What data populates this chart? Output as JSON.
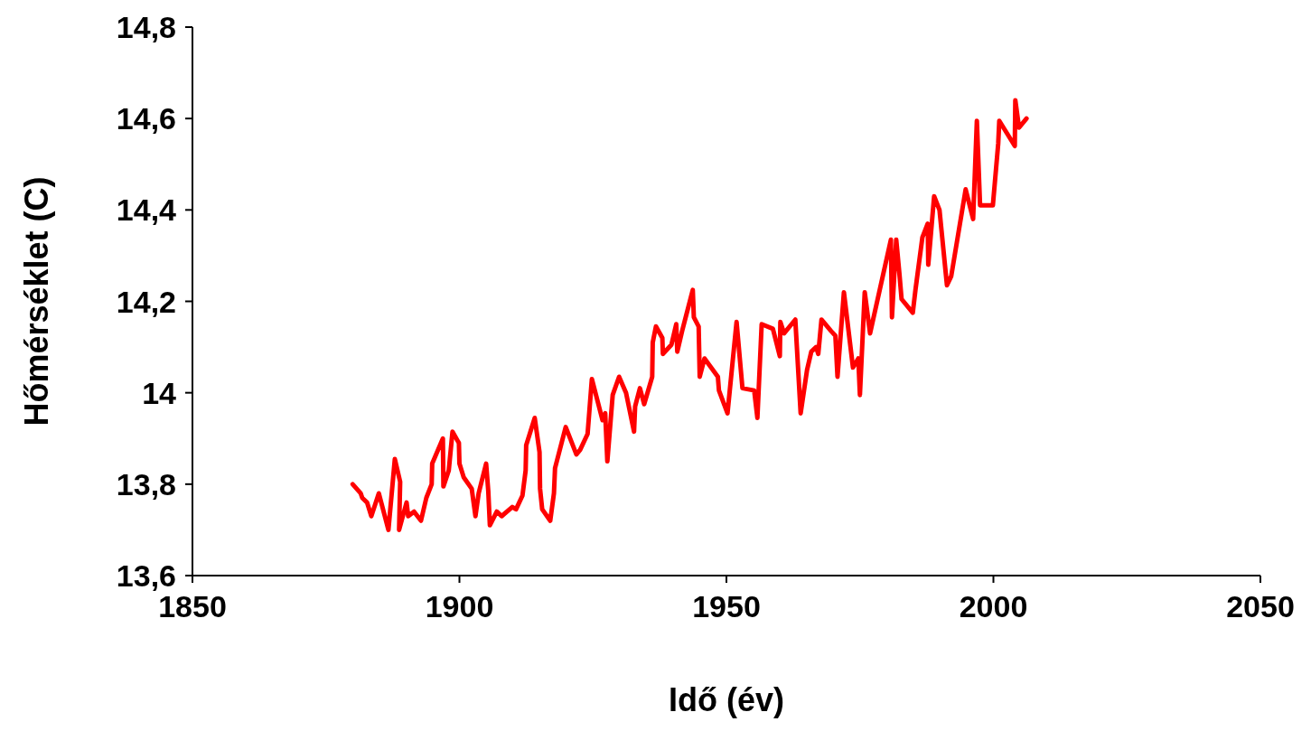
{
  "chart_data": {
    "type": "line",
    "xlabel": "Idő (év)",
    "ylabel": "Hőmérséklet (C)",
    "x": [
      1880,
      1881.5,
      1881.8,
      1882.7,
      1883.5,
      1884.9,
      1886.7,
      1887.9,
      1888.9,
      1888.7,
      1890.1,
      1890.4,
      1891.5,
      1892.8,
      1893.8,
      1894.8,
      1894.9,
      1896.9,
      1897,
      1898,
      1898.7,
      1899.9,
      1900,
      1900.8,
      1902.3,
      1903,
      1903.6,
      1905,
      1905.4,
      1905.7,
      1907,
      1907.9,
      1909.9,
      1910.6,
      1911.8,
      1912.4,
      1912.5,
      1914.1,
      1915,
      1915.1,
      1915.5,
      1917,
      1917.7,
      1917.9,
      1919.9,
      1921.9,
      1922.6,
      1924,
      1924.8,
      1926.8,
      1927.3,
      1927.7,
      1928.7,
      1929.9,
      1931.2,
      1932.7,
      1932.9,
      1933.8,
      1934.6,
      1936.1,
      1936.2,
      1936.8,
      1938,
      1938.1,
      1939.7,
      1940.6,
      1940.8,
      1941.7,
      1943.7,
      1943.9,
      1944.8,
      1945,
      1945.9,
      1948.4,
      1948.6,
      1950.2,
      1951.9,
      1953,
      1955.2,
      1955.8,
      1956.6,
      1958.7,
      1960,
      1960.1,
      1960.8,
      1962.9,
      1963.9,
      1965.1,
      1965.9,
      1966.8,
      1967.2,
      1967.8,
      1969.6,
      1970.4,
      1970.8,
      1972,
      1973.7,
      1974.7,
      1975,
      1975.9,
      1976.9,
      1980.8,
      1981,
      1981.8,
      1982.4,
      1982.8,
      1984.9,
      1985.4,
      1986.7,
      1987.7,
      1987.8,
      1988.9,
      1989.9,
      1991.3,
      1992.1,
      1994.8,
      1996.2,
      1996.9,
      1997.5,
      1999.9,
      2000.9,
      2001.1,
      2004,
      2004.1,
      2004.8,
      2006.2
    ],
    "series": [
      {
        "color": "#ff0000",
        "values": [
          13.8,
          13.78,
          13.77,
          13.76,
          13.73,
          13.78,
          13.7,
          13.855,
          13.805,
          13.7,
          13.76,
          13.73,
          13.74,
          13.72,
          13.77,
          13.8,
          13.845,
          13.9,
          13.795,
          13.83,
          13.915,
          13.89,
          13.845,
          13.815,
          13.79,
          13.73,
          13.78,
          13.845,
          13.785,
          13.71,
          13.74,
          13.73,
          13.75,
          13.745,
          13.775,
          13.83,
          13.885,
          13.945,
          13.87,
          13.79,
          13.745,
          13.72,
          13.78,
          13.835,
          13.925,
          13.865,
          13.875,
          13.91,
          14.03,
          13.94,
          13.955,
          13.85,
          13.995,
          14.035,
          14,
          13.915,
          13.97,
          14.01,
          13.975,
          14.035,
          14.11,
          14.145,
          14.12,
          14.085,
          14.105,
          14.15,
          14.09,
          14.135,
          14.225,
          14.165,
          14.145,
          14.035,
          14.075,
          14.035,
          14.005,
          13.955,
          14.155,
          14.01,
          14.005,
          13.945,
          14.15,
          14.14,
          14.08,
          14.155,
          14.13,
          14.16,
          13.955,
          14.05,
          14.09,
          14.1,
          14.085,
          14.16,
          14.135,
          14.125,
          14.035,
          14.22,
          14.055,
          14.075,
          13.995,
          14.22,
          14.13,
          14.335,
          14.165,
          14.335,
          14.26,
          14.205,
          14.175,
          14.225,
          14.34,
          14.37,
          14.28,
          14.43,
          14.4,
          14.235,
          14.255,
          14.445,
          14.38,
          14.595,
          14.41,
          14.41,
          14.545,
          14.595,
          14.54,
          14.64,
          14.58,
          14.6
        ]
      }
    ],
    "xlim": [
      1850,
      2050
    ],
    "xticks": [
      1850,
      1900,
      1950,
      2000,
      2050
    ],
    "ylim": [
      13.6,
      14.8
    ],
    "yticks": [
      {
        "value": 13.6,
        "label": "13,6"
      },
      {
        "value": 13.8,
        "label": "13,8"
      },
      14,
      {
        "value": 14.2,
        "label": "14,2"
      },
      {
        "value": 14.4,
        "label": "14,4"
      },
      {
        "value": 14.6,
        "label": "14,6"
      },
      {
        "value": 14.8,
        "label": "14,8"
      }
    ],
    "marker": "none",
    "line_style": "solid"
  }
}
